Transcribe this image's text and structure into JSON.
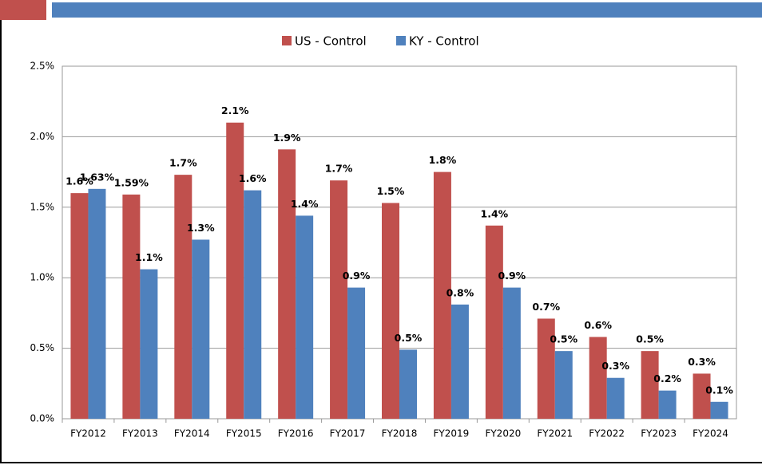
{
  "chart_data": {
    "type": "bar",
    "categories": [
      "FY2012",
      "FY2013",
      "FY2014",
      "FY2015",
      "FY2016",
      "FY2017",
      "FY2018",
      "FY2019",
      "FY2020",
      "FY2021",
      "FY2022",
      "FY2023",
      "FY2024"
    ],
    "series": [
      {
        "name": "US - Control",
        "color": "#c0504d",
        "values": [
          1.6,
          1.59,
          1.73,
          2.1,
          1.91,
          1.69,
          1.53,
          1.75,
          1.37,
          0.71,
          0.58,
          0.48,
          0.32
        ],
        "value_labels": [
          "1.6%",
          "1.59%",
          "1.7%",
          "2.1%",
          "1.9%",
          "1.7%",
          "1.5%",
          "1.8%",
          "1.4%",
          "0.7%",
          "0.6%",
          "0.5%",
          "0.3%"
        ]
      },
      {
        "name": "KY - Control",
        "color": "#4f81bd",
        "values": [
          1.63,
          1.06,
          1.27,
          1.62,
          1.44,
          0.93,
          0.49,
          0.81,
          0.93,
          0.48,
          0.29,
          0.2,
          0.12
        ],
        "value_labels": [
          "1.63%",
          "1.1%",
          "1.3%",
          "1.6%",
          "1.4%",
          "0.9%",
          "0.5%",
          "0.8%",
          "0.9%",
          "0.5%",
          "0.3%",
          "0.2%",
          "0.1%"
        ]
      }
    ],
    "ylim": [
      0,
      2.5
    ],
    "yticks": [
      {
        "value": 0,
        "label": "0.0%"
      },
      {
        "value": 0.5,
        "label": "0.5%"
      },
      {
        "value": 1,
        "label": "1.0%"
      },
      {
        "value": 1.5,
        "label": "1.5%"
      },
      {
        "value": 2,
        "label": "2.0%"
      },
      {
        "value": 2.5,
        "label": "2.5%"
      }
    ],
    "grid": true,
    "legend": "top"
  }
}
